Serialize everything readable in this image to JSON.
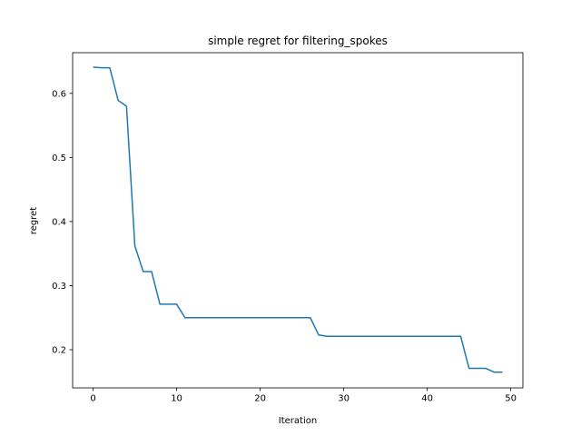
{
  "chart_data": {
    "type": "line",
    "title": "simple regret for filtering_spokes",
    "xlabel": "Iteration",
    "ylabel": "regret",
    "xlim": [
      -2.45,
      51.45
    ],
    "ylim": [
      0.1405,
      0.6635
    ],
    "xticks": [
      0,
      10,
      20,
      30,
      40,
      50
    ],
    "yticks": [
      0.2,
      0.3,
      0.4,
      0.5,
      0.6
    ],
    "ytick_labels": [
      "0.2",
      "0.3",
      "0.4",
      "0.5",
      "0.6"
    ],
    "grid": false,
    "series": [
      {
        "color": "#1f77b4",
        "x": [
          0,
          1,
          2,
          3,
          4,
          5,
          6,
          7,
          8,
          9,
          10,
          11,
          12,
          13,
          14,
          15,
          16,
          17,
          18,
          19,
          20,
          21,
          22,
          23,
          24,
          25,
          26,
          27,
          28,
          29,
          30,
          31,
          32,
          33,
          34,
          35,
          36,
          37,
          38,
          39,
          40,
          41,
          42,
          43,
          44,
          45,
          46,
          47,
          48,
          49
        ],
        "values": [
          0.641,
          0.64,
          0.64,
          0.589,
          0.58,
          0.362,
          0.322,
          0.322,
          0.271,
          0.271,
          0.271,
          0.25,
          0.25,
          0.25,
          0.25,
          0.25,
          0.25,
          0.25,
          0.25,
          0.25,
          0.25,
          0.25,
          0.25,
          0.25,
          0.25,
          0.25,
          0.25,
          0.223,
          0.221,
          0.221,
          0.221,
          0.221,
          0.221,
          0.221,
          0.221,
          0.221,
          0.221,
          0.221,
          0.221,
          0.221,
          0.221,
          0.221,
          0.221,
          0.221,
          0.221,
          0.171,
          0.171,
          0.171,
          0.165,
          0.165
        ]
      }
    ]
  }
}
